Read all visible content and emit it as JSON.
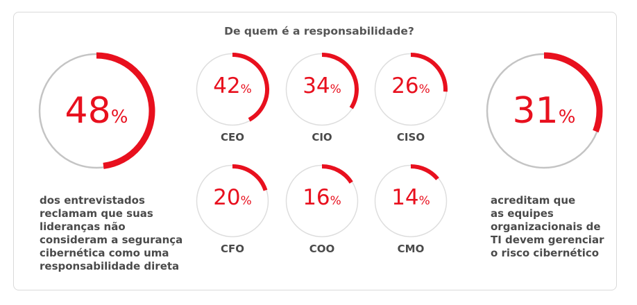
{
  "title": "De quem é a responsabilidade?",
  "colors": {
    "accent": "#e8101e",
    "track_big": "#c4c4c4",
    "track_small": "#dedede",
    "text": "#4a4a4a"
  },
  "left": {
    "value": "48",
    "unit": "%",
    "description_lines": [
      "dos entrevistados",
      "reclamam que suas",
      "lideranças não",
      "consideram a segurança",
      "cibernética como uma",
      "responsabilidade direta"
    ]
  },
  "right": {
    "value": "31",
    "unit": "%",
    "description_lines": [
      "acreditam que",
      "as equipes",
      "organizacionais de",
      "TI devem gerenciar",
      "o risco cibernético"
    ]
  },
  "chart_data": {
    "type": "radial-progress",
    "title": "De quem é a responsabilidade?",
    "unit": "%",
    "items": [
      {
        "label": "CEO",
        "value": 42
      },
      {
        "label": "CIO",
        "value": 34
      },
      {
        "label": "CISO",
        "value": 26
      },
      {
        "label": "CFO",
        "value": 20
      },
      {
        "label": "COO",
        "value": 16
      },
      {
        "label": "CMO",
        "value": 14
      }
    ]
  }
}
